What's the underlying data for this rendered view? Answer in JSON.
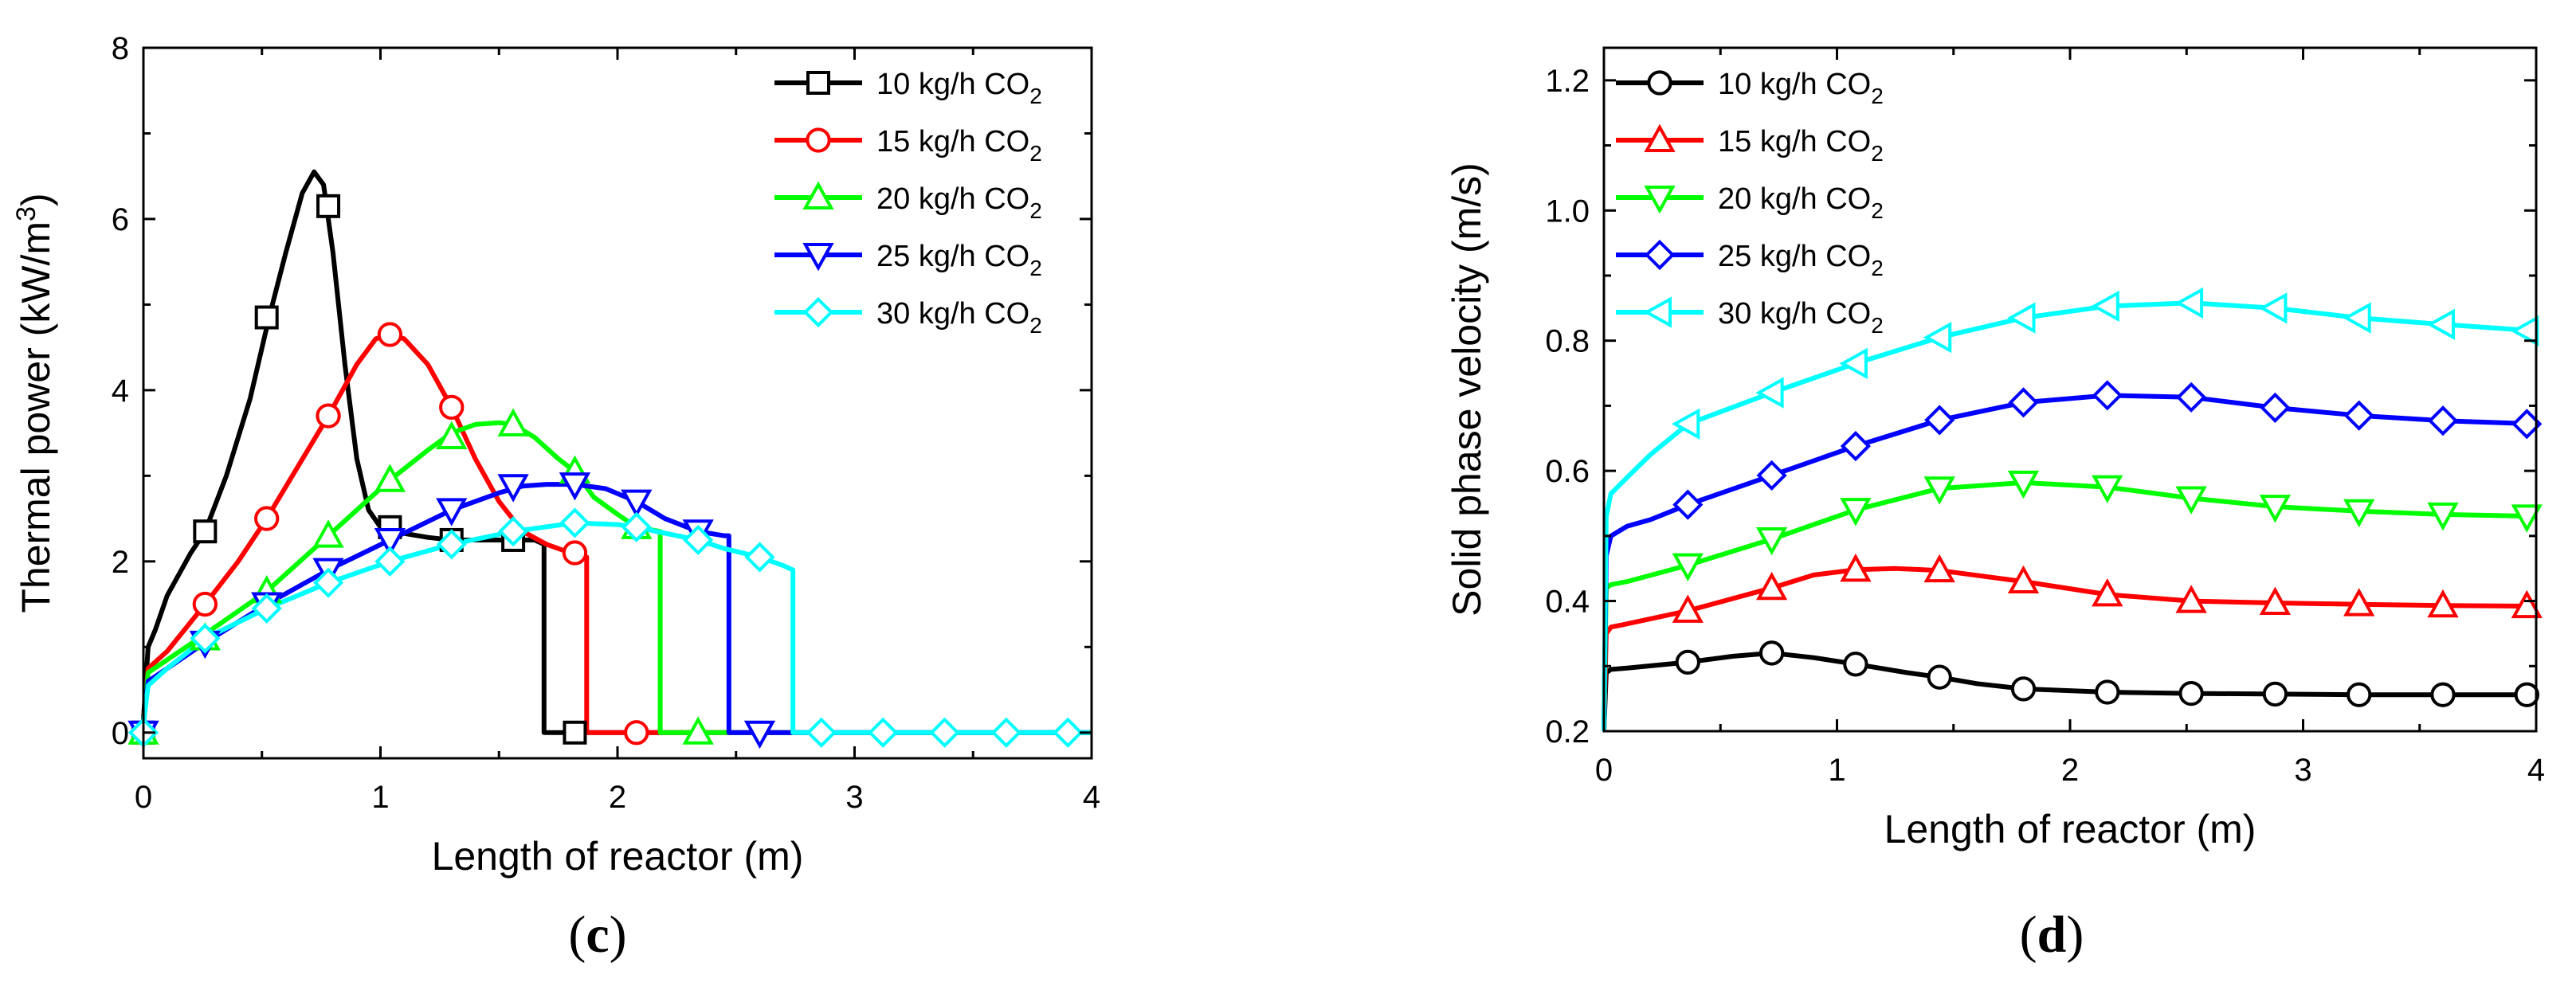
{
  "chart_data": [
    {
      "panel": "(c)",
      "type": "line",
      "xlabel": "Length of reactor (m)",
      "ylabel": "Thermal power (kW/m",
      "ylabel_sup": "3",
      "ylabel_end": ")",
      "xlim": [
        0,
        4
      ],
      "ylim": [
        -0.3,
        8
      ],
      "x_ticks": [
        0,
        1,
        2,
        3,
        4
      ],
      "x_tick_labels": [
        "0",
        "1",
        "2",
        "3",
        "4"
      ],
      "y_ticks": [
        0,
        2,
        4,
        6,
        8
      ],
      "y_tick_labels": [
        "0",
        "2",
        "4",
        "6",
        "8"
      ],
      "grid": false,
      "legend_position": "top-right",
      "series": [
        {
          "name": "10 kg/h CO",
          "name_sub": "2",
          "color": "#000000",
          "marker": "square",
          "x": [
            0.0,
            0.02,
            0.05,
            0.1,
            0.2,
            0.26,
            0.35,
            0.45,
            0.53,
            0.6,
            0.67,
            0.72,
            0.76,
            0.8,
            0.85,
            0.9,
            0.95,
            1.0,
            1.05,
            1.2,
            1.3,
            1.4,
            1.5,
            1.56,
            1.65,
            1.69,
            1.69,
            1.8,
            2.0,
            2.5,
            3.0,
            3.5,
            4.0
          ],
          "y": [
            0.15,
            1.0,
            1.2,
            1.6,
            2.1,
            2.35,
            3.0,
            3.9,
            4.85,
            5.6,
            6.3,
            6.55,
            6.4,
            5.6,
            4.3,
            3.2,
            2.6,
            2.4,
            2.35,
            2.28,
            2.25,
            2.25,
            2.25,
            2.25,
            2.25,
            2.2,
            0.0,
            0.0,
            0.0,
            0.0,
            0.0,
            0.0,
            0.0
          ],
          "marker_x": [
            0.0,
            0.26,
            0.52,
            0.78,
            1.04,
            1.3,
            1.56,
            1.82
          ],
          "marker_y": [
            0.0,
            2.35,
            4.85,
            6.15,
            2.4,
            2.25,
            2.25,
            0.0
          ]
        },
        {
          "name": "15 kg/h CO",
          "name_sub": "2",
          "color": "#ff0000",
          "marker": "circle",
          "x": [
            0.0,
            0.02,
            0.1,
            0.26,
            0.4,
            0.52,
            0.65,
            0.78,
            0.9,
            0.98,
            1.04,
            1.1,
            1.2,
            1.3,
            1.4,
            1.5,
            1.6,
            1.7,
            1.8,
            1.87,
            1.87,
            2.0,
            2.5,
            3.0,
            3.5,
            4.0
          ],
          "y": [
            0.1,
            0.75,
            0.95,
            1.5,
            2.0,
            2.5,
            3.1,
            3.7,
            4.3,
            4.6,
            4.65,
            4.6,
            4.3,
            3.8,
            3.2,
            2.7,
            2.35,
            2.2,
            2.1,
            2.05,
            0.0,
            0.0,
            0.0,
            0.0,
            0.0,
            0.0
          ],
          "marker_x": [
            0.0,
            0.26,
            0.52,
            0.78,
            1.04,
            1.3,
            1.82,
            2.08
          ],
          "marker_y": [
            0.0,
            1.5,
            2.5,
            3.7,
            4.65,
            3.8,
            2.1,
            0.0
          ]
        },
        {
          "name": "20 kg/h CO",
          "name_sub": "2",
          "color": "#00ff00",
          "marker": "triangle-up",
          "x": [
            0.0,
            0.02,
            0.1,
            0.26,
            0.52,
            0.78,
            1.04,
            1.2,
            1.3,
            1.4,
            1.5,
            1.56,
            1.65,
            1.75,
            1.82,
            1.9,
            2.0,
            2.08,
            2.18,
            2.18,
            2.3,
            2.5,
            3.0,
            3.5,
            4.0
          ],
          "y": [
            0.1,
            0.7,
            0.85,
            1.15,
            1.65,
            2.3,
            2.95,
            3.3,
            3.5,
            3.6,
            3.62,
            3.6,
            3.45,
            3.2,
            3.05,
            2.75,
            2.55,
            2.4,
            2.35,
            0.0,
            0.0,
            0.0,
            0.0,
            0.0,
            0.0
          ],
          "marker_x": [
            0.0,
            0.26,
            0.52,
            0.78,
            1.04,
            1.3,
            1.56,
            1.82,
            2.08,
            2.34
          ],
          "marker_y": [
            0.0,
            1.1,
            1.65,
            2.3,
            2.95,
            3.45,
            3.6,
            3.05,
            2.4,
            0.0
          ]
        },
        {
          "name": "25 kg/h CO",
          "name_sub": "2",
          "color": "#0000ff",
          "marker": "triangle-down",
          "x": [
            0.0,
            0.02,
            0.1,
            0.26,
            0.52,
            0.78,
            1.04,
            1.3,
            1.5,
            1.6,
            1.7,
            1.82,
            1.95,
            2.08,
            2.2,
            2.34,
            2.45,
            2.47,
            2.47,
            2.6,
            3.0,
            3.5,
            4.0
          ],
          "y": [
            0.1,
            0.6,
            0.75,
            1.05,
            1.5,
            1.9,
            2.25,
            2.6,
            2.8,
            2.88,
            2.9,
            2.9,
            2.85,
            2.7,
            2.5,
            2.35,
            2.3,
            2.3,
            0.0,
            0.0,
            0.0,
            0.0,
            0.0
          ],
          "marker_x": [
            0.0,
            0.26,
            0.52,
            0.78,
            1.04,
            1.3,
            1.56,
            1.82,
            2.08,
            2.34,
            2.6
          ],
          "marker_y": [
            0.0,
            1.05,
            1.5,
            1.9,
            2.25,
            2.6,
            2.88,
            2.9,
            2.7,
            2.35,
            0.0
          ]
        },
        {
          "name": "30 kg/h CO",
          "name_sub": "2",
          "color": "#00ffff",
          "marker": "diamond",
          "x": [
            0.0,
            0.02,
            0.1,
            0.26,
            0.52,
            0.78,
            1.04,
            1.3,
            1.56,
            1.82,
            2.0,
            2.08,
            2.2,
            2.34,
            2.45,
            2.6,
            2.7,
            2.74,
            2.74,
            2.9,
            3.5,
            4.0
          ],
          "y": [
            0.1,
            0.55,
            0.75,
            1.1,
            1.45,
            1.75,
            2.0,
            2.2,
            2.35,
            2.45,
            2.43,
            2.4,
            2.33,
            2.25,
            2.15,
            2.05,
            1.95,
            1.9,
            0.0,
            0.0,
            0.0,
            0.0
          ],
          "marker_x": [
            0.0,
            0.26,
            0.52,
            0.78,
            1.04,
            1.3,
            1.56,
            1.82,
            2.08,
            2.34,
            2.6,
            2.86,
            3.12,
            3.38,
            3.64,
            3.9
          ],
          "marker_y": [
            0.0,
            1.1,
            1.45,
            1.75,
            2.0,
            2.2,
            2.35,
            2.45,
            2.4,
            2.25,
            2.05,
            0.0,
            0.0,
            0.0,
            0.0,
            0.0
          ]
        }
      ]
    },
    {
      "panel": "(d)",
      "type": "line",
      "xlabel": "Length of reactor (m)",
      "ylabel": "Solid phase velocity (m/s)",
      "xlim": [
        0,
        4
      ],
      "ylim": [
        0.2,
        1.25
      ],
      "x_ticks": [
        0,
        1,
        2,
        3,
        4
      ],
      "x_tick_labels": [
        "0",
        "1",
        "2",
        "3",
        "4"
      ],
      "y_ticks": [
        0.2,
        0.4,
        0.6,
        0.8,
        1.0,
        1.2
      ],
      "y_tick_labels": [
        "0.2",
        "0.4",
        "0.6",
        "0.8",
        "1.0",
        "1.2"
      ],
      "grid": false,
      "legend_position": "top-left",
      "series": [
        {
          "name": "10 kg/h CO",
          "name_sub": "2",
          "color": "#000000",
          "marker": "circle",
          "x": [
            0.0,
            0.01,
            0.03,
            0.1,
            0.36,
            0.55,
            0.72,
            0.9,
            1.08,
            1.3,
            1.44,
            1.6,
            1.8,
            2.16,
            2.52,
            2.88,
            3.24,
            3.6,
            4.0
          ],
          "y": [
            0.2,
            0.29,
            0.295,
            0.297,
            0.306,
            0.315,
            0.32,
            0.313,
            0.303,
            0.29,
            0.283,
            0.273,
            0.265,
            0.26,
            0.258,
            0.257,
            0.256,
            0.256,
            0.256
          ],
          "marker_x": [
            0.36,
            0.72,
            1.08,
            1.44,
            1.8,
            2.16,
            2.52,
            2.88,
            3.24,
            3.6,
            3.96
          ],
          "marker_y": [
            0.306,
            0.32,
            0.303,
            0.283,
            0.265,
            0.26,
            0.258,
            0.257,
            0.256,
            0.256,
            0.256
          ]
        },
        {
          "name": "15 kg/h CO",
          "name_sub": "2",
          "color": "#ff0000",
          "marker": "triangle-up",
          "x": [
            0.0,
            0.01,
            0.03,
            0.1,
            0.36,
            0.72,
            0.9,
            1.08,
            1.25,
            1.44,
            1.8,
            2.16,
            2.52,
            2.88,
            3.24,
            3.6,
            4.0
          ],
          "y": [
            0.2,
            0.35,
            0.36,
            0.365,
            0.385,
            0.42,
            0.44,
            0.448,
            0.45,
            0.447,
            0.43,
            0.41,
            0.4,
            0.397,
            0.395,
            0.393,
            0.392
          ],
          "marker_x": [
            0.36,
            0.72,
            1.08,
            1.44,
            1.8,
            2.16,
            2.52,
            2.88,
            3.24,
            3.6,
            3.96
          ],
          "marker_y": [
            0.385,
            0.42,
            0.448,
            0.447,
            0.43,
            0.41,
            0.4,
            0.397,
            0.395,
            0.393,
            0.392
          ]
        },
        {
          "name": "20 kg/h CO",
          "name_sub": "2",
          "color": "#00ff00",
          "marker": "triangle-down",
          "x": [
            0.0,
            0.01,
            0.03,
            0.1,
            0.36,
            0.72,
            1.08,
            1.44,
            1.8,
            2.16,
            2.52,
            2.88,
            3.24,
            3.6,
            4.0
          ],
          "y": [
            0.2,
            0.42,
            0.425,
            0.43,
            0.455,
            0.495,
            0.54,
            0.573,
            0.582,
            0.575,
            0.558,
            0.545,
            0.538,
            0.533,
            0.53
          ],
          "marker_x": [
            0.36,
            0.72,
            1.08,
            1.44,
            1.8,
            2.16,
            2.52,
            2.88,
            3.24,
            3.6,
            3.96
          ],
          "marker_y": [
            0.455,
            0.495,
            0.54,
            0.573,
            0.582,
            0.575,
            0.558,
            0.545,
            0.538,
            0.533,
            0.53
          ]
        },
        {
          "name": "25 kg/h CO",
          "name_sub": "2",
          "color": "#0000ff",
          "marker": "diamond",
          "x": [
            0.0,
            0.01,
            0.03,
            0.1,
            0.2,
            0.36,
            0.72,
            1.08,
            1.44,
            1.8,
            2.16,
            2.52,
            2.88,
            3.24,
            3.6,
            4.0
          ],
          "y": [
            0.2,
            0.47,
            0.5,
            0.515,
            0.525,
            0.548,
            0.593,
            0.638,
            0.678,
            0.705,
            0.716,
            0.713,
            0.697,
            0.685,
            0.677,
            0.672
          ],
          "marker_x": [
            0.36,
            0.72,
            1.08,
            1.44,
            1.8,
            2.16,
            2.52,
            2.88,
            3.24,
            3.6,
            3.96
          ],
          "marker_y": [
            0.548,
            0.593,
            0.638,
            0.678,
            0.705,
            0.716,
            0.713,
            0.697,
            0.685,
            0.677,
            0.672
          ]
        },
        {
          "name": "30 kg/h CO",
          "name_sub": "2",
          "color": "#00ffff",
          "marker": "triangle-left",
          "x": [
            0.0,
            0.01,
            0.03,
            0.1,
            0.2,
            0.36,
            0.72,
            1.08,
            1.44,
            1.8,
            2.16,
            2.52,
            2.88,
            3.24,
            3.6,
            4.0
          ],
          "y": [
            0.2,
            0.53,
            0.565,
            0.59,
            0.625,
            0.672,
            0.72,
            0.765,
            0.805,
            0.835,
            0.853,
            0.858,
            0.85,
            0.835,
            0.825,
            0.815
          ],
          "marker_x": [
            0.36,
            0.72,
            1.08,
            1.44,
            1.8,
            2.16,
            2.52,
            2.88,
            3.24,
            3.6,
            3.96
          ],
          "marker_y": [
            0.672,
            0.72,
            0.765,
            0.805,
            0.835,
            0.853,
            0.858,
            0.85,
            0.835,
            0.825,
            0.815
          ]
        }
      ]
    }
  ],
  "captions": {
    "left_open": "(",
    "left_letter": "c",
    "left_close": ")",
    "right_open": "(",
    "right_letter": "d",
    "right_close": ")"
  }
}
